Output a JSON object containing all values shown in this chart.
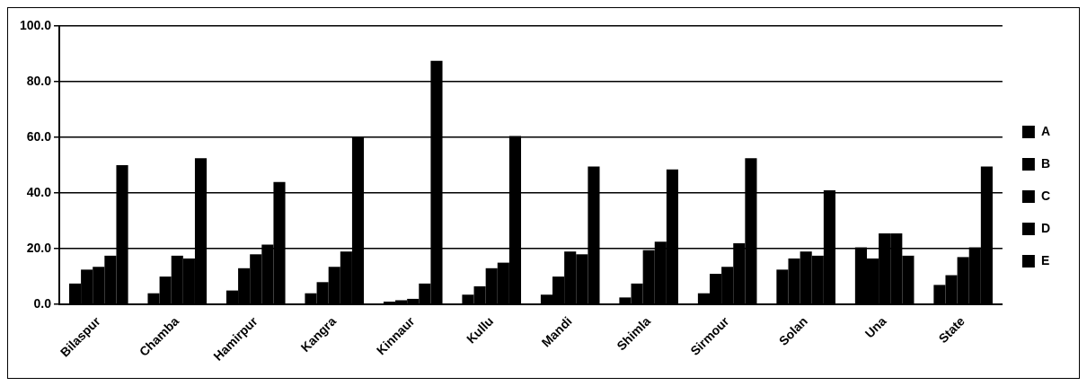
{
  "chart_data": {
    "type": "bar",
    "categories": [
      "Bilaspur",
      "Chamba",
      "Hamirpur",
      "Kangra",
      "Kinnaur",
      "Kullu",
      "Mandi",
      "Shimla",
      "Sirmour",
      "Solan",
      "Una",
      "State"
    ],
    "series": [
      {
        "name": "A",
        "color": "#000000",
        "values": [
          7.5,
          4,
          5,
          4,
          1,
          3.5,
          3.5,
          2.5,
          4,
          12.5,
          20.5,
          7
        ]
      },
      {
        "name": "B",
        "color": "#000000",
        "values": [
          12.5,
          10,
          13,
          8,
          1.5,
          6.5,
          10,
          7.5,
          11,
          16.5,
          16.5,
          10.5
        ]
      },
      {
        "name": "C",
        "color": "#000000",
        "values": [
          13.5,
          17.5,
          18,
          13.5,
          2,
          13,
          19,
          19.5,
          13.5,
          19,
          25.5,
          17
        ]
      },
      {
        "name": "D",
        "color": "#000000",
        "values": [
          17.5,
          16.5,
          21.5,
          19,
          7.5,
          15,
          18,
          22.5,
          22,
          17.5,
          25.5,
          20.5
        ]
      },
      {
        "name": "E",
        "color": "#000000",
        "values": [
          50,
          52.5,
          44,
          60,
          87.5,
          60.5,
          49.5,
          48.5,
          52.5,
          41,
          17.5,
          49.5
        ]
      }
    ],
    "ylim": [
      0,
      100
    ],
    "yticks": [
      {
        "value": 0,
        "label": "0.0"
      },
      {
        "value": 20,
        "label": "20.0"
      },
      {
        "value": 40,
        "label": "40.0"
      },
      {
        "value": 60,
        "label": "60.0"
      },
      {
        "value": 80,
        "label": "80.0"
      },
      {
        "value": 100,
        "label": "100.0"
      }
    ],
    "grid": "y",
    "legend": "right"
  }
}
